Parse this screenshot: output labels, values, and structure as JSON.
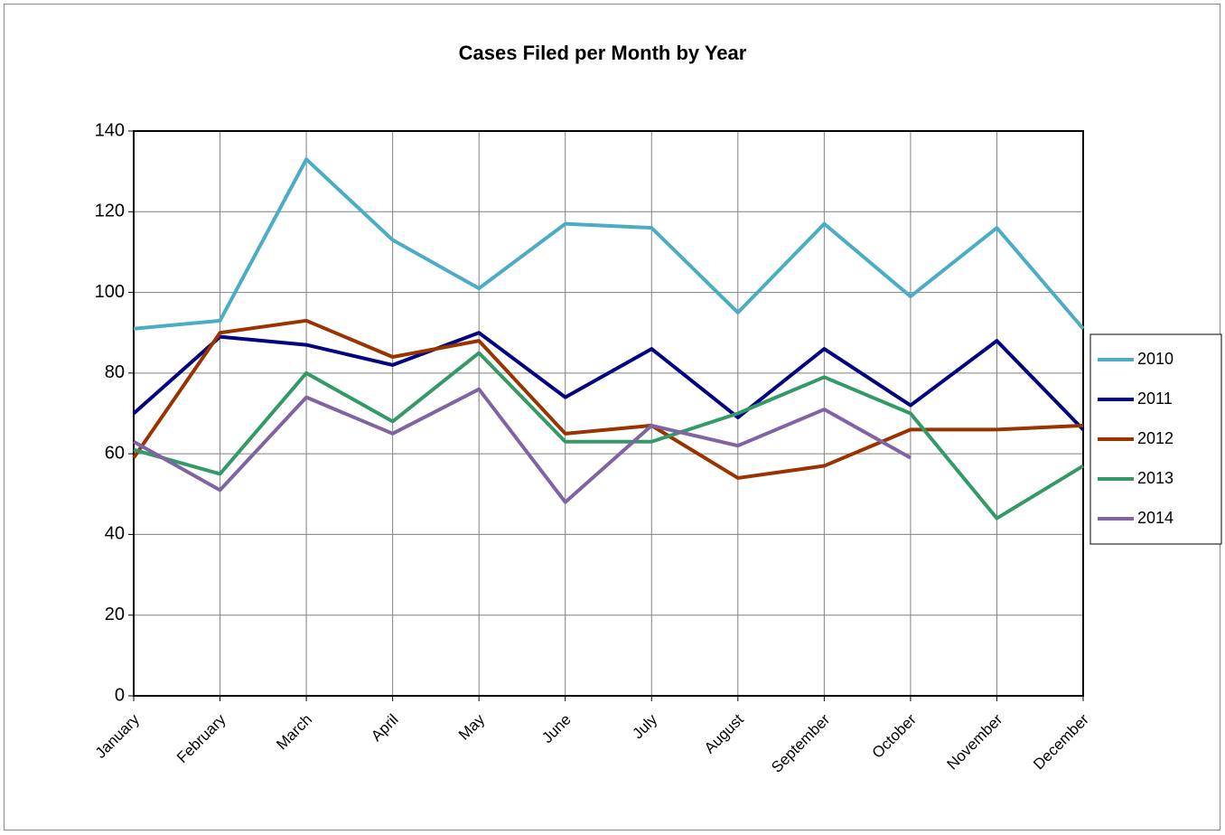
{
  "chart_data": {
    "type": "line",
    "title": "Cases Filed per Month by Year",
    "categories": [
      "January",
      "February",
      "March",
      "April",
      "May",
      "June",
      "July",
      "August",
      "September",
      "October",
      "November",
      "December"
    ],
    "series": [
      {
        "name": "2010",
        "color": "#4bacc6",
        "values": [
          91,
          93,
          133,
          113,
          101,
          117,
          116,
          95,
          117,
          99,
          116,
          91
        ]
      },
      {
        "name": "2011",
        "color": "#000080",
        "values": [
          70,
          89,
          87,
          82,
          90,
          74,
          86,
          69,
          86,
          72,
          88,
          66
        ]
      },
      {
        "name": "2012",
        "color": "#993300",
        "values": [
          59,
          90,
          93,
          84,
          88,
          65,
          67,
          54,
          57,
          66,
          66,
          67
        ]
      },
      {
        "name": "2013",
        "color": "#339966",
        "values": [
          61,
          55,
          80,
          68,
          85,
          63,
          63,
          70,
          79,
          70,
          44,
          57
        ]
      },
      {
        "name": "2014",
        "color": "#8064a2",
        "values": [
          63,
          51,
          74,
          65,
          76,
          48,
          67,
          62,
          71,
          59,
          null,
          null
        ]
      }
    ],
    "ylim": [
      0,
      140
    ],
    "yticks": [
      0,
      20,
      40,
      60,
      80,
      100,
      120,
      140
    ],
    "grid": true,
    "legend": "right"
  }
}
